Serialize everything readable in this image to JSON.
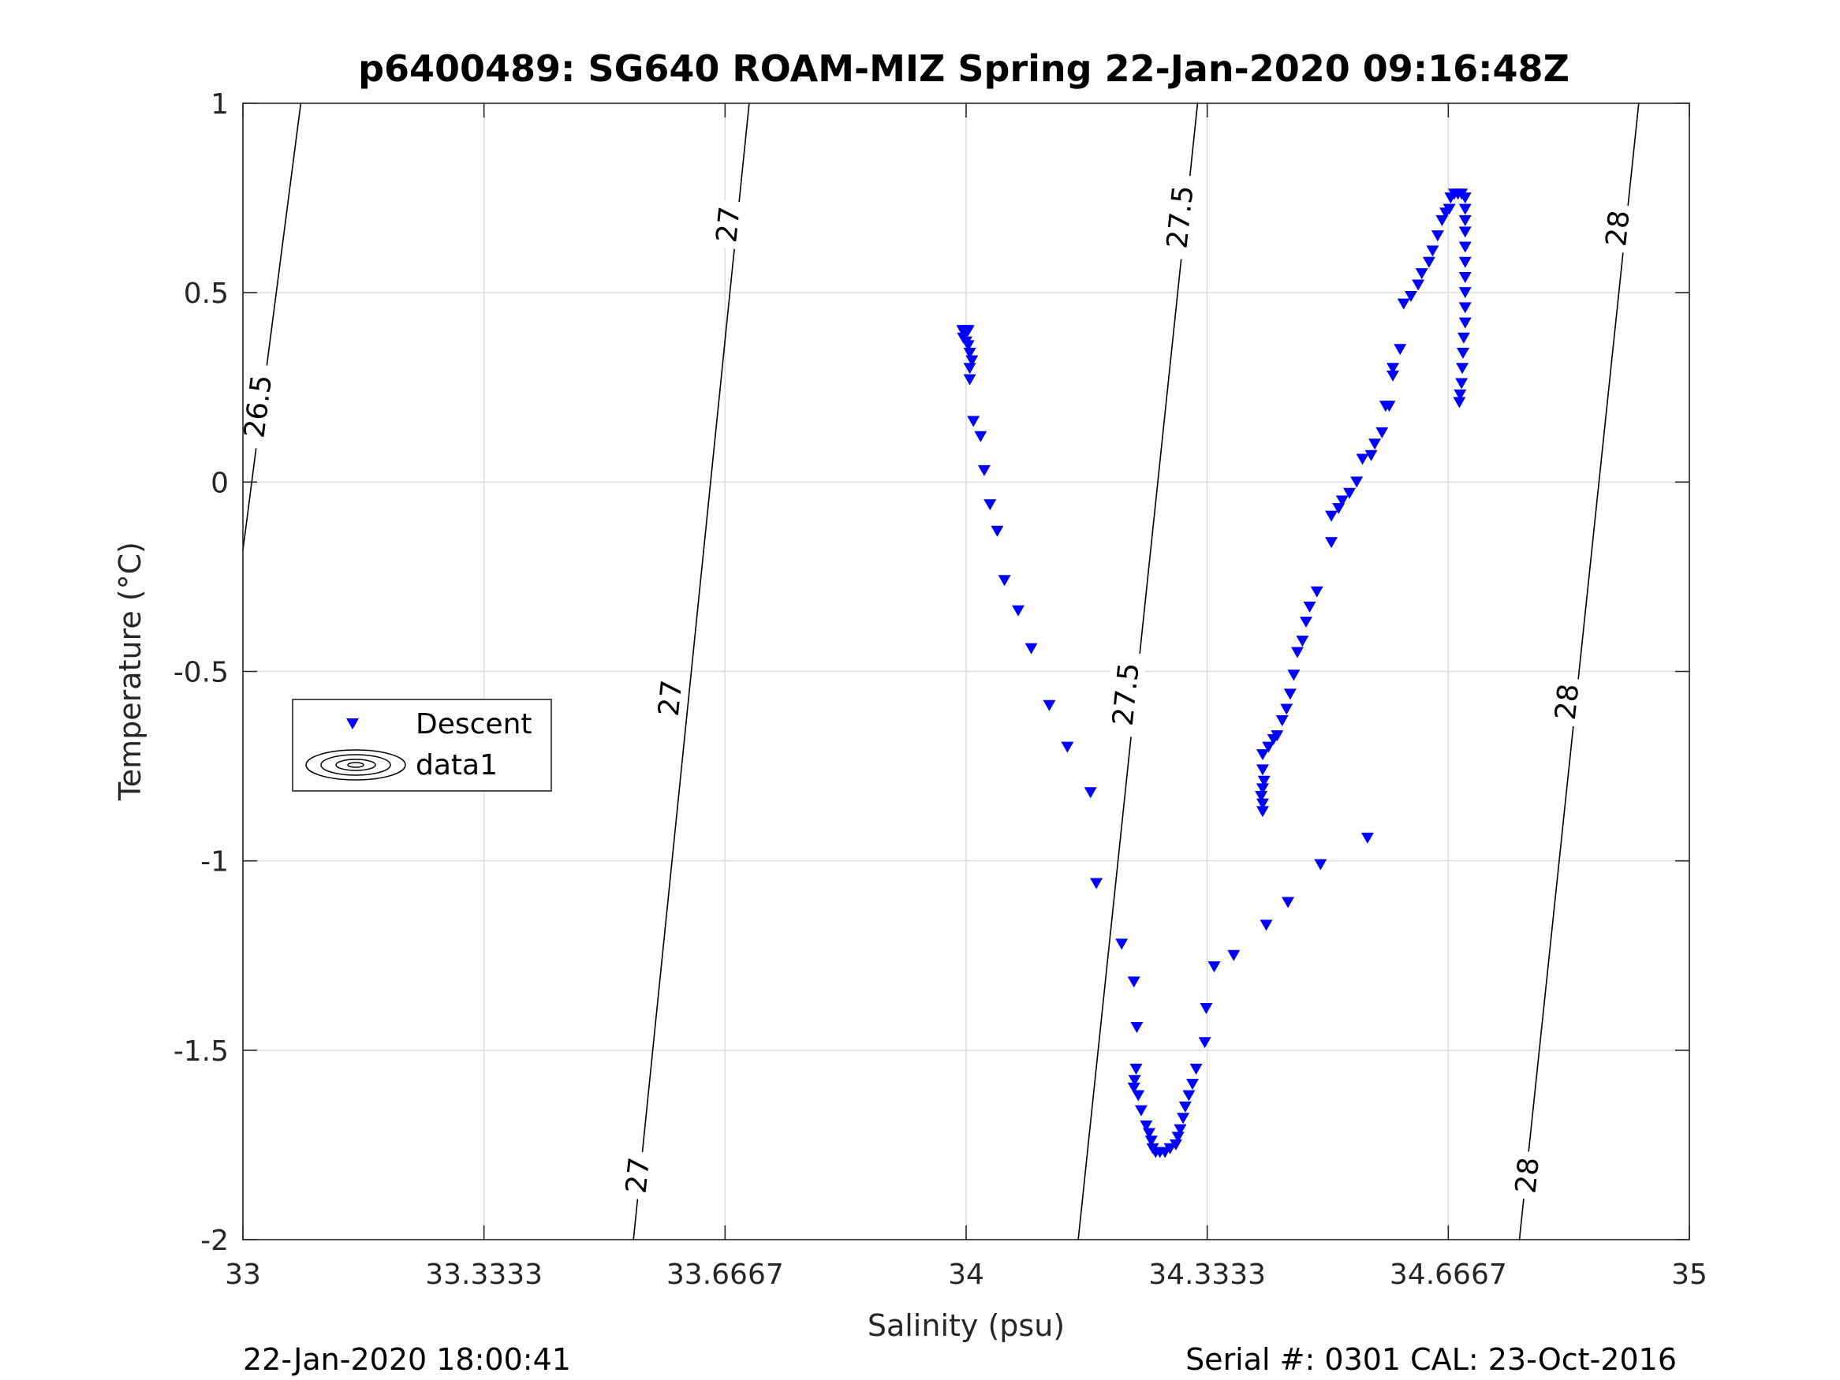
{
  "chart_data": {
    "type": "scatter",
    "title": "p6400489: SG640 ROAM-MIZ Spring 22-Jan-2020 09:16:48Z",
    "xlabel": "Salinity (psu)",
    "ylabel": "Temperature (°C)",
    "xlim": [
      33,
      35
    ],
    "ylim": [
      -2,
      1
    ],
    "x_ticks": [
      "33",
      "33.3333",
      "33.6667",
      "34",
      "34.3333",
      "34.6667",
      "35"
    ],
    "y_ticks": [
      "1",
      "0.5",
      "0",
      "-0.5",
      "-1",
      "-1.5",
      "-2"
    ],
    "grid": true,
    "legend": {
      "location": "left-middle",
      "entries": [
        "Descent",
        "data1"
      ]
    },
    "colors": {
      "descent": "#0000ff",
      "contour": "#000000",
      "grid": "#dcdcdc"
    },
    "series": [
      {
        "name": "Descent",
        "marker": "down-triangle",
        "points": [
          [
            33.995,
            0.4
          ],
          [
            34.0,
            0.4
          ],
          [
            34.003,
            0.4
          ],
          [
            33.996,
            0.38
          ],
          [
            34.0,
            0.37
          ],
          [
            34.003,
            0.36
          ],
          [
            34.005,
            0.34
          ],
          [
            34.008,
            0.32
          ],
          [
            34.005,
            0.3
          ],
          [
            34.005,
            0.27
          ],
          [
            34.01,
            0.16
          ],
          [
            34.02,
            0.12
          ],
          [
            34.025,
            0.03
          ],
          [
            34.033,
            -0.06
          ],
          [
            34.043,
            -0.13
          ],
          [
            34.053,
            -0.26
          ],
          [
            34.072,
            -0.34
          ],
          [
            34.09,
            -0.44
          ],
          [
            34.115,
            -0.59
          ],
          [
            34.14,
            -0.7
          ],
          [
            34.172,
            -0.82
          ],
          [
            34.18,
            -1.06
          ],
          [
            34.215,
            -1.22
          ],
          [
            34.232,
            -1.32
          ],
          [
            34.236,
            -1.44
          ],
          [
            34.235,
            -1.55
          ],
          [
            34.233,
            -1.58
          ],
          [
            34.232,
            -1.6
          ],
          [
            34.238,
            -1.62
          ],
          [
            34.242,
            -1.66
          ],
          [
            34.249,
            -1.7
          ],
          [
            34.253,
            -1.72
          ],
          [
            34.256,
            -1.74
          ],
          [
            34.258,
            -1.76
          ],
          [
            34.262,
            -1.77
          ],
          [
            34.268,
            -1.77
          ],
          [
            34.275,
            -1.77
          ],
          [
            34.282,
            -1.76
          ],
          [
            34.29,
            -1.75
          ],
          [
            34.293,
            -1.73
          ],
          [
            34.296,
            -1.71
          ],
          [
            34.3,
            -1.68
          ],
          [
            34.303,
            -1.65
          ],
          [
            34.308,
            -1.62
          ],
          [
            34.313,
            -1.59
          ],
          [
            34.318,
            -1.55
          ],
          [
            34.33,
            -1.48
          ],
          [
            34.332,
            -1.39
          ],
          [
            34.343,
            -1.28
          ],
          [
            34.37,
            -1.25
          ],
          [
            34.415,
            -1.17
          ],
          [
            34.445,
            -1.11
          ],
          [
            34.49,
            -1.01
          ],
          [
            34.555,
            -0.94
          ],
          [
            34.41,
            -0.87
          ],
          [
            34.41,
            -0.85
          ],
          [
            34.408,
            -0.83
          ],
          [
            34.41,
            -0.81
          ],
          [
            34.412,
            -0.79
          ],
          [
            34.41,
            -0.76
          ],
          [
            34.41,
            -0.72
          ],
          [
            34.418,
            -0.7
          ],
          [
            34.425,
            -0.68
          ],
          [
            34.43,
            -0.67
          ],
          [
            34.437,
            -0.63
          ],
          [
            34.443,
            -0.6
          ],
          [
            34.448,
            -0.56
          ],
          [
            34.453,
            -0.51
          ],
          [
            34.458,
            -0.45
          ],
          [
            34.465,
            -0.42
          ],
          [
            34.47,
            -0.37
          ],
          [
            34.475,
            -0.33
          ],
          [
            34.485,
            -0.29
          ],
          [
            34.505,
            -0.16
          ],
          [
            34.505,
            -0.09
          ],
          [
            34.515,
            -0.07
          ],
          [
            34.52,
            -0.05
          ],
          [
            34.53,
            -0.03
          ],
          [
            34.54,
            0.0
          ],
          [
            34.548,
            0.06
          ],
          [
            34.56,
            0.07
          ],
          [
            34.565,
            0.1
          ],
          [
            34.575,
            0.13
          ],
          [
            34.58,
            0.2
          ],
          [
            34.585,
            0.2
          ],
          [
            34.59,
            0.28
          ],
          [
            34.59,
            0.3
          ],
          [
            34.6,
            0.35
          ],
          [
            34.605,
            0.47
          ],
          [
            34.615,
            0.49
          ],
          [
            34.625,
            0.52
          ],
          [
            34.63,
            0.55
          ],
          [
            34.64,
            0.58
          ],
          [
            34.645,
            0.61
          ],
          [
            34.652,
            0.65
          ],
          [
            34.658,
            0.69
          ],
          [
            34.663,
            0.71
          ],
          [
            34.668,
            0.72
          ],
          [
            34.67,
            0.75
          ],
          [
            34.675,
            0.76
          ],
          [
            34.68,
            0.76
          ],
          [
            34.685,
            0.76
          ],
          [
            34.69,
            0.75
          ],
          [
            34.69,
            0.72
          ],
          [
            34.69,
            0.69
          ],
          [
            34.69,
            0.66
          ],
          [
            34.69,
            0.62
          ],
          [
            34.69,
            0.58
          ],
          [
            34.69,
            0.54
          ],
          [
            34.69,
            0.5
          ],
          [
            34.69,
            0.46
          ],
          [
            34.69,
            0.42
          ],
          [
            34.688,
            0.38
          ],
          [
            34.687,
            0.34
          ],
          [
            34.686,
            0.3
          ],
          [
            34.685,
            0.26
          ],
          [
            34.683,
            0.23
          ],
          [
            34.682,
            0.21
          ]
        ]
      },
      {
        "name": "data1",
        "type": "contour",
        "lines": [
          {
            "level": "26.5",
            "points": [
              [
                33.0,
                -0.18
              ],
              [
                33.08,
                1.0
              ]
            ]
          },
          {
            "level": "27",
            "points": [
              [
                33.54,
                -2.0
              ],
              [
                33.7,
                1.0
              ]
            ]
          },
          {
            "level": "27.5",
            "points": [
              [
                34.155,
                -2.0
              ],
              [
                34.32,
                1.0
              ]
            ]
          },
          {
            "level": "28",
            "points": [
              [
                34.765,
                -2.0
              ],
              [
                34.93,
                1.0
              ]
            ]
          }
        ],
        "labels": [
          {
            "text": "26.5",
            "x": 33.02,
            "y": 0.2
          },
          {
            "text": "27",
            "x": 33.67,
            "y": 0.68
          },
          {
            "text": "27",
            "x": 33.59,
            "y": -0.57
          },
          {
            "text": "27",
            "x": 33.545,
            "y": -1.83
          },
          {
            "text": "27.5",
            "x": 34.295,
            "y": 0.7
          },
          {
            "text": "27.5",
            "x": 34.22,
            "y": -0.56
          },
          {
            "text": "28",
            "x": 34.9,
            "y": 0.67
          },
          {
            "text": "28",
            "x": 34.83,
            "y": -0.58
          },
          {
            "text": "28",
            "x": 34.775,
            "y": -1.83
          }
        ]
      }
    ]
  },
  "footer": {
    "left": "22-Jan-2020 18:00:41",
    "right": "Serial #: 0301  CAL: 23-Oct-2016"
  }
}
